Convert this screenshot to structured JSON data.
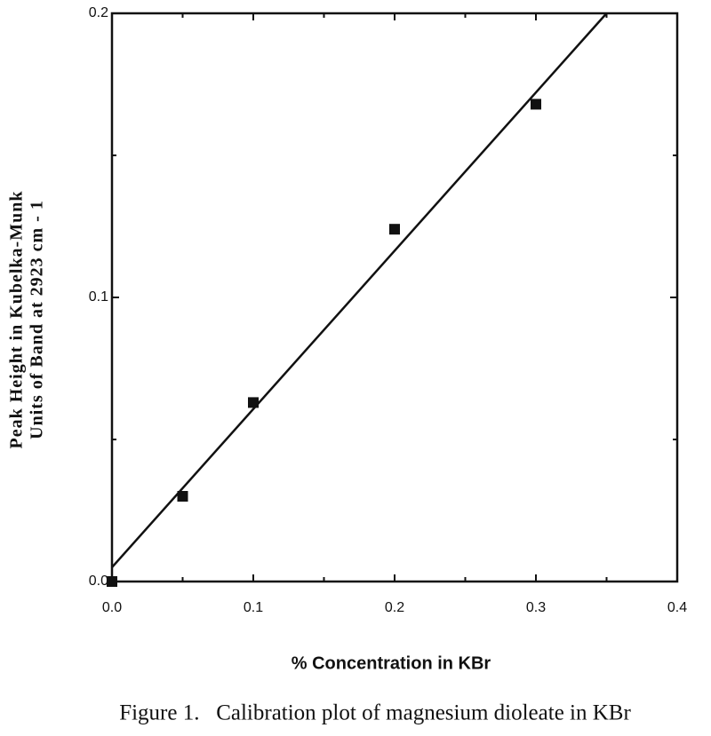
{
  "chart_data": {
    "type": "scatter",
    "caption": "Figure 1.   Calibration plot of magnesium dioleate in KBr",
    "xlabel": "% Concentration in KBr",
    "ylabel": [
      "Peak  Height  in  Kubelka-Munk",
      "Units of Band at 2923 cm - 1"
    ],
    "series": [
      {
        "style": "marker",
        "color": "#111111",
        "x": [
          0,
          0.05,
          0.1,
          0.2,
          0.3
        ],
        "values": [
          0,
          0.03,
          0.063,
          0.124,
          0.168
        ]
      },
      {
        "style": "line",
        "color": "#111111",
        "x": [
          0,
          0.35
        ],
        "values": [
          0.005,
          0.2
        ]
      }
    ],
    "xlim": [
      0,
      0.4
    ],
    "ylim": [
      0,
      0.2
    ],
    "xticks": [
      {
        "value": 0,
        "label": "0.0"
      },
      0.1,
      0.2,
      0.3,
      0.4
    ],
    "yticks": [
      {
        "value": 0,
        "label": "0.0"
      },
      0.1,
      0.2
    ],
    "xminorticks": [
      0.05,
      0.15,
      0.25,
      0.35
    ],
    "yminorticks": [
      0.05,
      0.15
    ]
  }
}
